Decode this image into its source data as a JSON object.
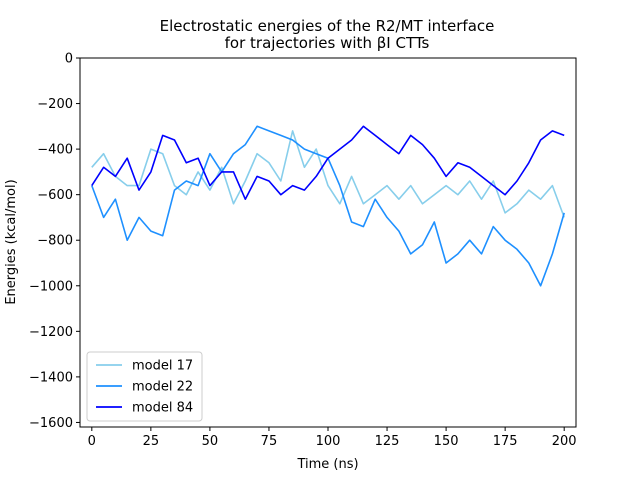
{
  "chart_data": {
    "type": "line",
    "title": "Electrostatic energies of the R2/MT interface\nfor trajectories with βI CTTs",
    "xlabel": "Time (ns)",
    "ylabel": "Energies (kcal/mol)",
    "xlim": [
      -5,
      205
    ],
    "ylim": [
      -1620,
      0
    ],
    "xticks": [
      0,
      25,
      50,
      75,
      100,
      125,
      150,
      175,
      200
    ],
    "yticks": [
      0,
      -200,
      -400,
      -600,
      -800,
      -1000,
      -1200,
      -1400,
      -1600
    ],
    "grid": false,
    "legend_position": "lower-left",
    "series": [
      {
        "name": "model 17",
        "color": "#87ceeb",
        "x": [
          0,
          5,
          10,
          15,
          20,
          25,
          30,
          35,
          40,
          45,
          50,
          55,
          60,
          65,
          70,
          75,
          80,
          85,
          90,
          95,
          100,
          105,
          110,
          115,
          120,
          125,
          130,
          135,
          140,
          145,
          150,
          155,
          160,
          165,
          170,
          175,
          180,
          185,
          190,
          195,
          200
        ],
        "values": [
          -480,
          -420,
          -520,
          -560,
          -560,
          -400,
          -420,
          -560,
          -600,
          -500,
          -580,
          -480,
          -640,
          -540,
          -420,
          -460,
          -540,
          -320,
          -480,
          -400,
          -560,
          -640,
          -520,
          -640,
          -600,
          -560,
          -620,
          -560,
          -640,
          -600,
          -560,
          -600,
          -540,
          -620,
          -540,
          -680,
          -640,
          -580,
          -620,
          -560,
          -700
        ]
      },
      {
        "name": "model 22",
        "color": "#1e90ff",
        "x": [
          0,
          5,
          10,
          15,
          20,
          25,
          30,
          35,
          40,
          45,
          50,
          55,
          60,
          65,
          70,
          75,
          80,
          85,
          90,
          95,
          100,
          105,
          110,
          115,
          120,
          125,
          130,
          135,
          140,
          145,
          150,
          155,
          160,
          165,
          170,
          175,
          180,
          185,
          190,
          195,
          200
        ],
        "values": [
          -560,
          -700,
          -620,
          -800,
          -700,
          -760,
          -780,
          -580,
          -540,
          -560,
          -420,
          -500,
          -420,
          -380,
          -300,
          -320,
          -340,
          -360,
          -400,
          -420,
          -440,
          -560,
          -720,
          -740,
          -620,
          -700,
          -760,
          -860,
          -820,
          -720,
          -900,
          -860,
          -800,
          -860,
          -740,
          -800,
          -840,
          -900,
          -1000,
          -860,
          -680
        ]
      },
      {
        "name": "model 84",
        "color": "#0000ff",
        "x": [
          0,
          5,
          10,
          15,
          20,
          25,
          30,
          35,
          40,
          45,
          50,
          55,
          60,
          65,
          70,
          75,
          80,
          85,
          90,
          95,
          100,
          105,
          110,
          115,
          120,
          125,
          130,
          135,
          140,
          145,
          150,
          155,
          160,
          165,
          170,
          175,
          180,
          185,
          190,
          195,
          200
        ],
        "values": [
          -560,
          -480,
          -520,
          -440,
          -580,
          -500,
          -340,
          -360,
          -460,
          -440,
          -560,
          -500,
          -500,
          -620,
          -520,
          -540,
          -600,
          -560,
          -580,
          -520,
          -440,
          -400,
          -360,
          -300,
          -340,
          -380,
          -420,
          -340,
          -380,
          -440,
          -520,
          -460,
          -480,
          -520,
          -560,
          -600,
          -540,
          -460,
          -360,
          -320,
          -340
        ]
      }
    ]
  }
}
